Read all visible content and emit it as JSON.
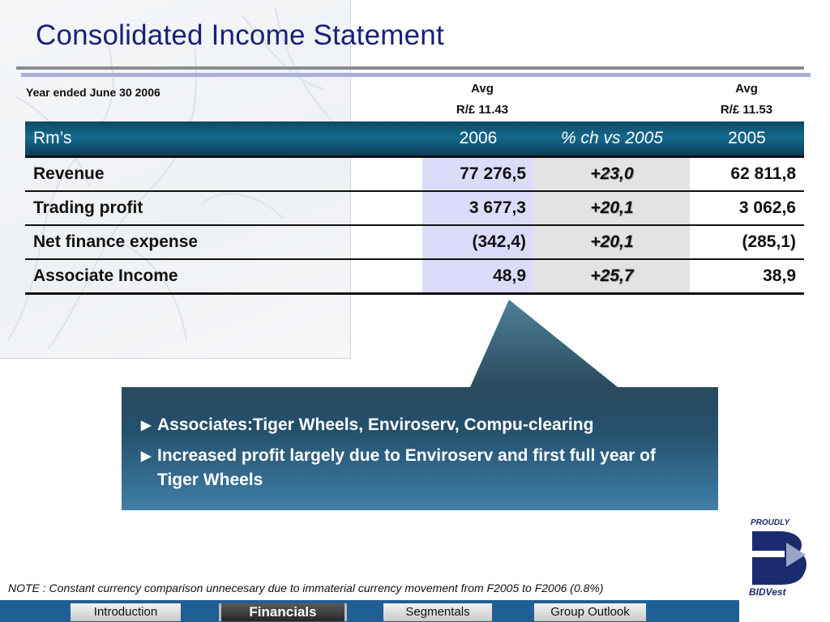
{
  "header": {
    "title": "Consolidated Income Statement",
    "year_label": "Year ended June 30 2006",
    "avg_2006": {
      "line1": "Avg",
      "line2": "R/£ 11.43"
    },
    "avg_2005": {
      "line1": "Avg",
      "line2": "R/£ 11.53"
    }
  },
  "table": {
    "headers": [
      "Rm’s",
      "2006",
      "% ch vs  2005",
      "2005"
    ],
    "rows": [
      {
        "label": "Revenue",
        "v2006": "77 276,5",
        "pct": "+23,0",
        "v2005": "62 811,8"
      },
      {
        "label": "Trading profit",
        "v2006": "3 677,3",
        "pct": "+20,1",
        "v2005": "3 062,6"
      },
      {
        "label": "Net finance expense",
        "v2006": "(342,4)",
        "pct": "+20,1",
        "v2005": "(285,1)"
      },
      {
        "label": "Associate Income",
        "v2006": "48,9",
        "pct": "+25,7",
        "v2005": "38,9"
      }
    ]
  },
  "callout": {
    "bullets": [
      "Associates:Tiger Wheels, Enviroserv, Compu-clearing",
      "Increased profit largely due to Enviroserv and first full year of Tiger Wheels"
    ]
  },
  "logo": {
    "top_text": "PROUDLY",
    "bottom_text": "BIDVest"
  },
  "note": "NOTE : Constant currency comparison unnecesary due to immaterial currency movement from F2005 to F2006 (0.8%)",
  "nav": {
    "tabs": [
      {
        "label": "Introduction",
        "active": false
      },
      {
        "label": "Financials",
        "active": true
      },
      {
        "label": "Segmentals",
        "active": false
      },
      {
        "label": "Group Outlook",
        "active": false
      }
    ]
  },
  "colors": {
    "title": "#1a1f7a",
    "table_header": "#14698c",
    "callout": "#2f6e96",
    "nav_bar": "#1f5f96"
  }
}
